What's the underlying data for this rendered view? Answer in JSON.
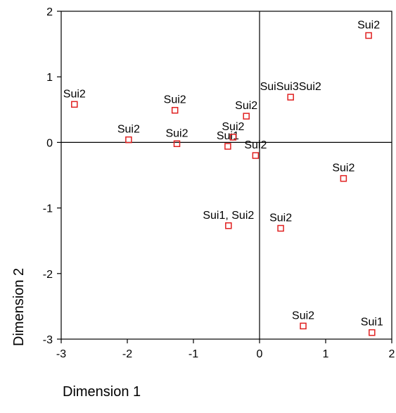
{
  "chart_data": {
    "type": "scatter",
    "xlabel": "Dimension 1",
    "ylabel": "Dimension 2",
    "xlim": [
      -3,
      2
    ],
    "ylim": [
      -3,
      2
    ],
    "x_ticks": [
      "-3",
      "-2",
      "-1",
      "0",
      "1",
      "2"
    ],
    "y_ticks": [
      "2",
      "1",
      "0",
      "-1",
      "-2",
      "-3"
    ],
    "grid": false,
    "reference_lines": {
      "x": 0,
      "y": 0
    },
    "marker": {
      "shape": "hollow-square",
      "color": "#e02020"
    },
    "points": [
      {
        "x": -2.8,
        "y": 0.58,
        "label": "Sui2"
      },
      {
        "x": -1.98,
        "y": 0.04,
        "label": "Sui2"
      },
      {
        "x": -1.28,
        "y": 0.49,
        "label": "Sui2"
      },
      {
        "x": -1.25,
        "y": -0.02,
        "label": "Sui2"
      },
      {
        "x": -0.48,
        "y": -0.06,
        "label": "Sui1"
      },
      {
        "x": -0.4,
        "y": 0.08,
        "label": "Sui2"
      },
      {
        "x": -0.2,
        "y": 0.4,
        "label": "Sui2"
      },
      {
        "x": -0.06,
        "y": -0.2,
        "label": "Sui2"
      },
      {
        "x": 0.47,
        "y": 0.69,
        "label": "SuiSui3Sui2"
      },
      {
        "x": 1.65,
        "y": 1.63,
        "label": "Sui2"
      },
      {
        "x": 1.27,
        "y": -0.55,
        "label": "Sui2"
      },
      {
        "x": -0.47,
        "y": -1.27,
        "label": "Sui1, Sui2"
      },
      {
        "x": 0.32,
        "y": -1.31,
        "label": "Sui2"
      },
      {
        "x": 0.66,
        "y": -2.8,
        "label": "Sui2"
      },
      {
        "x": 1.7,
        "y": -2.9,
        "label": "Sui1"
      }
    ]
  }
}
